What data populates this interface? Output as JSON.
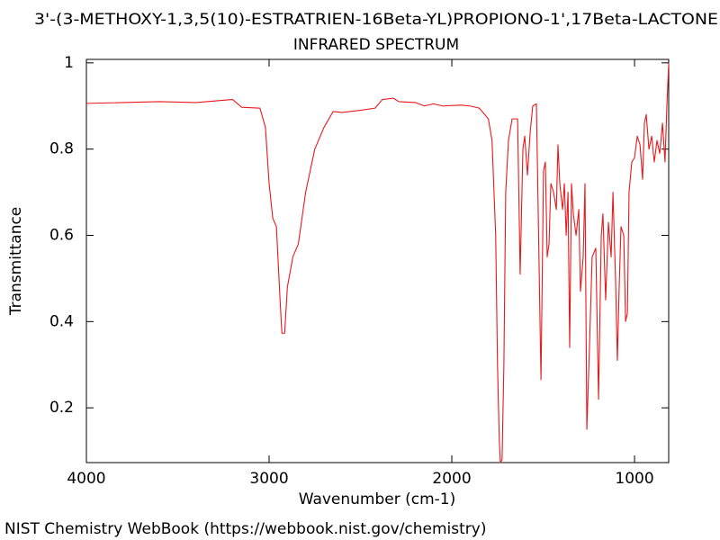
{
  "chart_data": {
    "type": "line",
    "title": "3'-(3-METHOXY-1,3,5(10)-ESTRATRIEN-16Beta-YL)PROPIONO-1',17Beta-LACTONE",
    "subtitle": "INFRARED SPECTRUM",
    "x_label": "Wavenumber (cm-1)",
    "y_label": "Transmittance",
    "footer": "NIST Chemistry WebBook (https://webbook.nist.gov/chemistry)",
    "color": "#e8191c",
    "x": [
      4000,
      3600,
      3400,
      3200,
      3150,
      3050,
      3020,
      3000,
      2980,
      2960,
      2940,
      2930,
      2915,
      2900,
      2870,
      2840,
      2800,
      2750,
      2700,
      2650,
      2600,
      2500,
      2420,
      2380,
      2320,
      2290,
      2200,
      2150,
      2100,
      2050,
      1950,
      1900,
      1850,
      1800,
      1780,
      1760,
      1750,
      1740,
      1734,
      1725,
      1715,
      1705,
      1690,
      1670,
      1650,
      1640,
      1626,
      1611,
      1601,
      1586,
      1571,
      1557,
      1537,
      1512,
      1498,
      1488,
      1478,
      1468,
      1458,
      1443,
      1428,
      1419,
      1409,
      1394,
      1384,
      1374,
      1364,
      1355,
      1345,
      1335,
      1320,
      1305,
      1296,
      1281,
      1271,
      1261,
      1246,
      1232,
      1212,
      1197,
      1182,
      1173,
      1158,
      1143,
      1128,
      1118,
      1104,
      1094,
      1084,
      1074,
      1059,
      1049,
      1039,
      1030,
      1015,
      1000,
      985,
      970,
      956,
      946,
      936,
      921,
      906,
      892,
      877,
      862,
      847,
      833,
      823,
      813
    ],
    "values": [
      0.906,
      0.91,
      0.908,
      0.915,
      0.897,
      0.895,
      0.85,
      0.72,
      0.64,
      0.62,
      0.45,
      0.373,
      0.373,
      0.48,
      0.55,
      0.58,
      0.7,
      0.8,
      0.85,
      0.887,
      0.885,
      0.89,
      0.895,
      0.915,
      0.918,
      0.91,
      0.908,
      0.9,
      0.905,
      0.9,
      0.902,
      0.9,
      0.895,
      0.87,
      0.82,
      0.6,
      0.3,
      0.12,
      0.073,
      0.08,
      0.3,
      0.7,
      0.82,
      0.87,
      0.87,
      0.87,
      0.51,
      0.8,
      0.83,
      0.74,
      0.84,
      0.9,
      0.905,
      0.265,
      0.75,
      0.77,
      0.55,
      0.58,
      0.72,
      0.7,
      0.66,
      0.81,
      0.72,
      0.66,
      0.72,
      0.6,
      0.7,
      0.34,
      0.72,
      0.65,
      0.6,
      0.66,
      0.47,
      0.55,
      0.72,
      0.15,
      0.35,
      0.55,
      0.57,
      0.22,
      0.6,
      0.65,
      0.45,
      0.63,
      0.55,
      0.7,
      0.5,
      0.31,
      0.48,
      0.62,
      0.6,
      0.4,
      0.42,
      0.7,
      0.77,
      0.78,
      0.83,
      0.81,
      0.73,
      0.86,
      0.88,
      0.8,
      0.83,
      0.77,
      0.82,
      0.79,
      0.86,
      0.77,
      0.9,
      1.0
    ],
    "xlim": [
      4000,
      813
    ],
    "ylim": [
      0.073,
      1.008
    ],
    "xticks": [
      4000,
      3000,
      2000,
      1000
    ],
    "yticks": [
      0.2,
      0.4,
      0.6,
      0.8,
      1
    ]
  }
}
